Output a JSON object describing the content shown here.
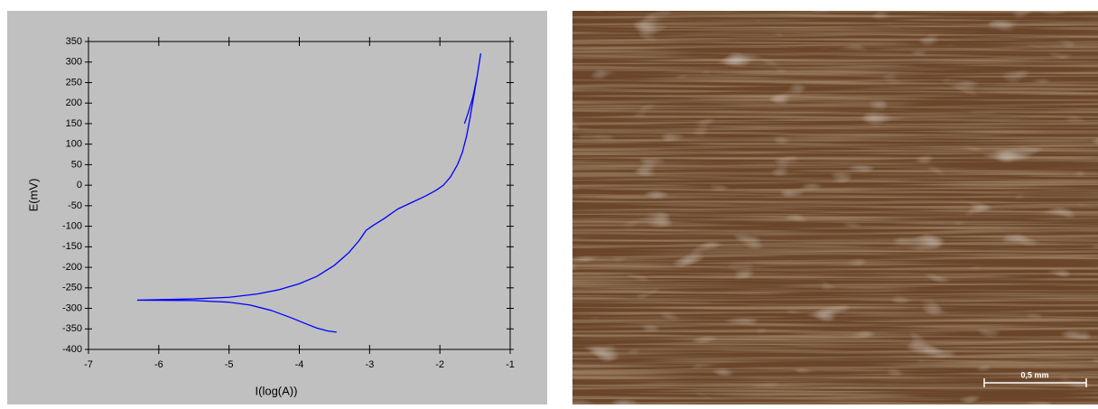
{
  "chart_data": {
    "type": "line",
    "x_label": "I(log(A))",
    "y_label": "E(mV)",
    "xlim": [
      -7,
      -1
    ],
    "xticks": [
      -7,
      -6,
      -5,
      -4,
      -3,
      -2,
      -1
    ],
    "ylim": [
      -400,
      350
    ],
    "yticks": [
      -400,
      -350,
      -300,
      -250,
      -200,
      -150,
      -100,
      -50,
      0,
      50,
      100,
      150,
      200,
      250,
      300,
      350
    ],
    "grid": false,
    "series": [
      {
        "color": "#0000ff",
        "x": [
          -3.47,
          -3.6,
          -3.75,
          -3.9,
          -4.1,
          -4.4,
          -4.7,
          -5.0,
          -5.5,
          -6.3,
          -5.5,
          -5.0,
          -4.6,
          -4.3,
          -4.0,
          -3.75,
          -3.5,
          -3.3,
          -3.15,
          -3.05,
          -2.95,
          -2.8,
          -2.6,
          -2.4,
          -2.2,
          -2.05,
          -1.95,
          -1.85,
          -1.75,
          -1.68,
          -1.62,
          -1.57,
          -1.52,
          -1.47,
          -1.42,
          -1.47,
          -1.53,
          -1.6,
          -1.65
        ],
        "values": [
          -358,
          -355,
          -348,
          -338,
          -324,
          -305,
          -292,
          -285,
          -281,
          -280,
          -277,
          -273,
          -265,
          -255,
          -240,
          -222,
          -195,
          -165,
          -135,
          -110,
          -98,
          -82,
          -58,
          -42,
          -26,
          -12,
          0,
          20,
          50,
          80,
          120,
          165,
          215,
          265,
          320,
          265,
          215,
          175,
          150
        ]
      }
    ]
  },
  "image": {
    "scale_bar_label": "0,5 mm"
  }
}
